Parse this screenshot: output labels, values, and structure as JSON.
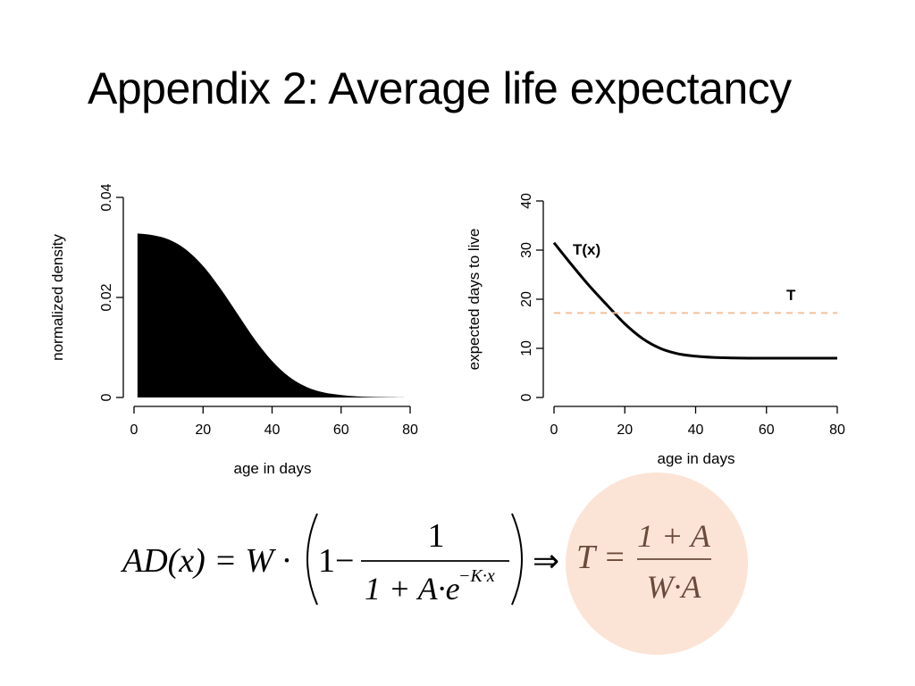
{
  "slide": {
    "title": "Appendix 2: Average life expectancy"
  },
  "colors": {
    "accent": "#f4c09a",
    "circle": "#fbe4d6",
    "t_text": "#6b4a3a"
  },
  "chart_data": [
    {
      "type": "area",
      "xlabel": "age in days",
      "ylabel": "normalized density",
      "xlim": [
        0,
        80
      ],
      "ylim": [
        0,
        0.04
      ],
      "xticks": [
        "0",
        "20",
        "40",
        "60",
        "80"
      ],
      "yticks": [
        "0",
        "0.02",
        "0.04"
      ],
      "x": [
        1,
        5,
        10,
        15,
        20,
        25,
        30,
        35,
        40,
        45,
        50,
        55,
        60,
        65,
        70,
        75,
        80
      ],
      "y": [
        0.0328,
        0.0325,
        0.0316,
        0.0296,
        0.0263,
        0.0218,
        0.0167,
        0.0116,
        0.0073,
        0.0041,
        0.0021,
        0.001,
        0.0005,
        0.0002,
        0.0001,
        5e-05,
        0.0
      ]
    },
    {
      "type": "line",
      "xlabel": "age in days",
      "ylabel": "expected days to live",
      "xlim": [
        0,
        80
      ],
      "ylim": [
        0,
        40
      ],
      "xticks": [
        "0",
        "20",
        "40",
        "60",
        "80"
      ],
      "yticks": [
        "0",
        "10",
        "20",
        "30",
        "40"
      ],
      "series": [
        {
          "name": "T(x)",
          "x": [
            0,
            5,
            10,
            15,
            20,
            25,
            30,
            35,
            40,
            45,
            50,
            55,
            60,
            65,
            70,
            75,
            80
          ],
          "y": [
            31.5,
            27.0,
            22.7,
            18.8,
            15.0,
            12.0,
            10.0,
            8.9,
            8.4,
            8.15,
            8.05,
            8.0,
            8.0,
            8.0,
            8.0,
            8.0,
            8.0
          ]
        },
        {
          "name": "T",
          "x": [
            0,
            80
          ],
          "y": [
            17.2,
            17.2
          ],
          "style": "dashed"
        }
      ]
    }
  ],
  "formula": {
    "lhs": "AD(x) = W ·",
    "one": "1",
    "minus": "−",
    "numerator": "1",
    "den_main": "1 + A·e",
    "den_exp": "−K·x",
    "implies": "⇒",
    "t_lhs": "T =",
    "t_num": "1 + A",
    "t_den": "W·A"
  }
}
